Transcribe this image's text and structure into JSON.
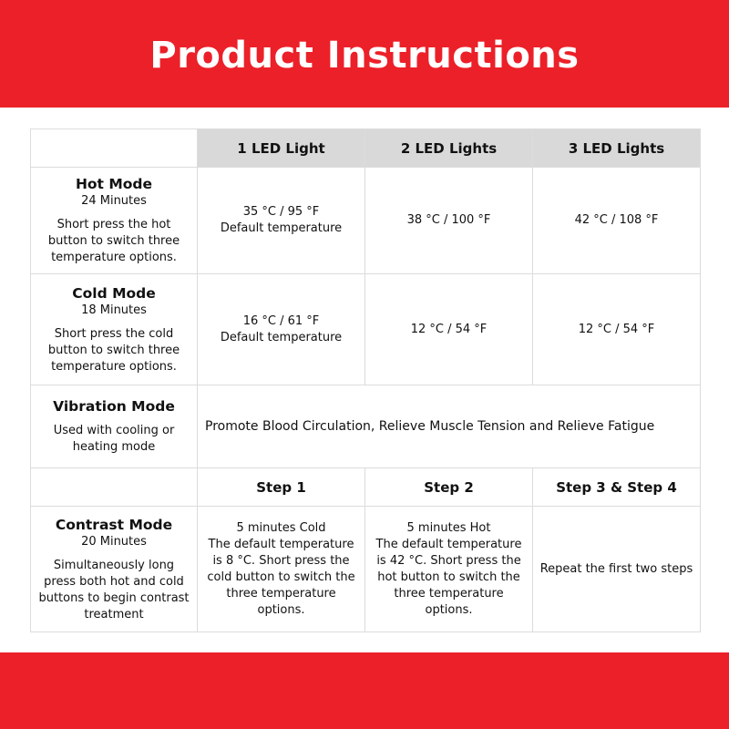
{
  "title": "Product Instructions",
  "colors": {
    "banner": "#ec2029",
    "header_bg": "#d9d9d9"
  },
  "headers": [
    "1 LED Light",
    "2 LED Lights",
    "3 LED Lights"
  ],
  "hot": {
    "title": "Hot Mode",
    "duration": "24 Minutes",
    "desc": "Short press the hot button to switch three temperature options.",
    "c1a": "35 °C / 95 °F",
    "c1b": "Default temperature",
    "c2": "38 °C / 100 °F",
    "c3": "42 °C / 108 °F"
  },
  "cold": {
    "title": "Cold Mode",
    "duration": "18 Minutes",
    "desc": "Short press the cold button to switch three temperature options.",
    "c1a": "16 °C / 61 °F",
    "c1b": "Default temperature",
    "c2": "12 °C / 54 °F",
    "c3": "12 °C / 54 °F"
  },
  "vibration": {
    "title": "Vibration Mode",
    "desc": "Used with cooling or heating mode",
    "text": "Promote Blood Circulation, Relieve Muscle Tension and Relieve Fatigue"
  },
  "steps": [
    "Step 1",
    "Step 2",
    "Step 3 & Step 4"
  ],
  "contrast": {
    "title": "Contrast Mode",
    "duration": "20 Minutes",
    "desc": "Simultaneously long press both hot and cold buttons to begin contrast treatment",
    "s1a": "5 minutes Cold",
    "s1b": "The default temperature is 8 °C. Short press the cold button to switch the three temperature options.",
    "s2a": "5 minutes Hot",
    "s2b": "The default temperature is 42 °C. Short press the hot button to switch the three temperature options.",
    "s3": "Repeat the first two steps"
  }
}
